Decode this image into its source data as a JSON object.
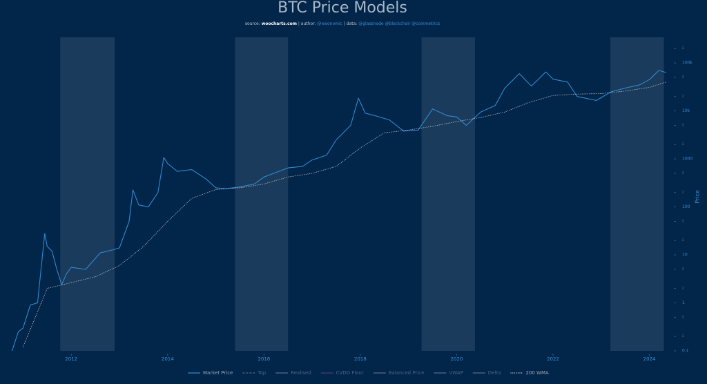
{
  "chart_data": {
    "type": "line",
    "title": "BTC Price Models",
    "subtitle": [
      {
        "text": "source: ",
        "color": "#b8c4d0"
      },
      {
        "text": "woocharts.com",
        "color": "#ffffff"
      },
      {
        "text": " | author: ",
        "color": "#b8c4d0"
      },
      {
        "text": "@woonomic",
        "color": "#3a8fd6"
      },
      {
        "text": " | data: ",
        "color": "#b8c4d0"
      },
      {
        "text": "@glassnode @blockchair @coinmetrics",
        "color": "#3a8fd6"
      }
    ],
    "y_label": "Price",
    "log_y": true,
    "xlim": [
      2010.75,
      2024.35
    ],
    "xticks": [
      2012,
      2014,
      2016,
      2018,
      2020,
      2022,
      2024
    ],
    "ylim": [
      0.1,
      300000
    ],
    "yticks": [
      0.1,
      {
        "value": 0.2,
        "label": "2"
      },
      {
        "value": 0.5,
        "label": "5"
      },
      1,
      {
        "value": 2,
        "label": "2"
      },
      {
        "value": 5,
        "label": "5"
      },
      10,
      {
        "value": 20,
        "label": "2"
      },
      {
        "value": 50,
        "label": "5"
      },
      100,
      {
        "value": 200,
        "label": "2"
      },
      {
        "value": 500,
        "label": "5"
      },
      1000,
      {
        "value": 2000,
        "label": "2"
      },
      {
        "value": 5000,
        "label": "5"
      },
      {
        "value": 10000,
        "label": "10k"
      },
      {
        "value": 20000,
        "label": "2"
      },
      {
        "value": 50000,
        "label": "5"
      },
      {
        "value": 100000,
        "label": "100k"
      },
      {
        "value": 200000,
        "label": "2"
      }
    ],
    "bands": [
      [
        2011.77,
        2012.9
      ],
      [
        2015.4,
        2016.5
      ],
      [
        2019.27,
        2020.38
      ],
      [
        2023.19,
        2024.3
      ]
    ],
    "band_color": "rgba(255,255,255,0.1)",
    "series": [
      {
        "name": "Market Price",
        "color": "#2e8bd0",
        "style": "solid",
        "x": [
          2010.77,
          2010.9,
          2011.0,
          2011.15,
          2011.3,
          2011.45,
          2011.5,
          2011.6,
          2011.7,
          2011.8,
          2011.9,
          2012.0,
          2012.3,
          2012.6,
          2012.9,
          2013.0,
          2013.2,
          2013.28,
          2013.4,
          2013.6,
          2013.8,
          2013.92,
          2014.0,
          2014.2,
          2014.5,
          2014.8,
          2015.0,
          2015.2,
          2015.5,
          2015.8,
          2016.0,
          2016.5,
          2016.8,
          2017.0,
          2017.3,
          2017.5,
          2017.8,
          2017.96,
          2018.1,
          2018.3,
          2018.6,
          2018.9,
          2019.2,
          2019.5,
          2019.8,
          2020.0,
          2020.2,
          2020.5,
          2020.8,
          2021.0,
          2021.3,
          2021.55,
          2021.85,
          2022.0,
          2022.3,
          2022.5,
          2022.9,
          2023.2,
          2023.5,
          2023.8,
          2024.0,
          2024.2,
          2024.35
        ],
        "values": [
          0.1,
          0.25,
          0.3,
          0.9,
          1,
          28,
          15,
          12,
          5,
          2.4,
          4,
          5.5,
          5,
          11,
          13,
          14,
          50,
          226,
          110,
          100,
          200,
          1070,
          800,
          550,
          600,
          380,
          250,
          240,
          260,
          300,
          420,
          650,
          700,
          950,
          1200,
          2500,
          5000,
          18500,
          9000,
          8000,
          6500,
          3800,
          4000,
          11000,
          8000,
          7500,
          5000,
          9500,
          13000,
          30000,
          60000,
          33000,
          65000,
          46000,
          40000,
          20000,
          16500,
          25000,
          30000,
          35000,
          45000,
          70000,
          63000
        ]
      },
      {
        "name": "200 WMA",
        "color": "#c8ccd0",
        "style": "dotted",
        "x": [
          2011.0,
          2011.5,
          2011.9,
          2012.5,
          2013.0,
          2013.5,
          2014.0,
          2014.5,
          2015.0,
          2015.5,
          2016.0,
          2016.5,
          2017.0,
          2017.5,
          2018.0,
          2018.5,
          2019.0,
          2019.5,
          2020.0,
          2020.5,
          2021.0,
          2021.5,
          2022.0,
          2022.5,
          2023.0,
          2023.5,
          2024.0,
          2024.35
        ],
        "values": [
          0.12,
          2,
          2.5,
          3.5,
          6,
          15,
          50,
          150,
          230,
          250,
          300,
          420,
          500,
          700,
          1700,
          3500,
          4000,
          4800,
          6000,
          7300,
          9500,
          15000,
          21000,
          22500,
          23000,
          26000,
          31000,
          40000
        ]
      }
    ],
    "legend": [
      {
        "name": "Market Price",
        "color": "#2e8bd0",
        "style": "solid"
      },
      {
        "name": "Top",
        "color": "#5a6c80",
        "style": "dashed"
      },
      {
        "name": "Realised",
        "color": "#5a6c80",
        "style": "solid"
      },
      {
        "name": "CVDD Floor",
        "color": "#4a3c80",
        "style": "solid"
      },
      {
        "name": "Balanced Price",
        "color": "#5a6c80",
        "style": "solid"
      },
      {
        "name": "VWAP",
        "color": "#5a6c80",
        "style": "solid"
      },
      {
        "name": "Delta",
        "color": "#5a6c80",
        "style": "solid"
      },
      {
        "name": "200 WMA",
        "color": "#c8ccd0",
        "style": "dotted"
      }
    ]
  }
}
